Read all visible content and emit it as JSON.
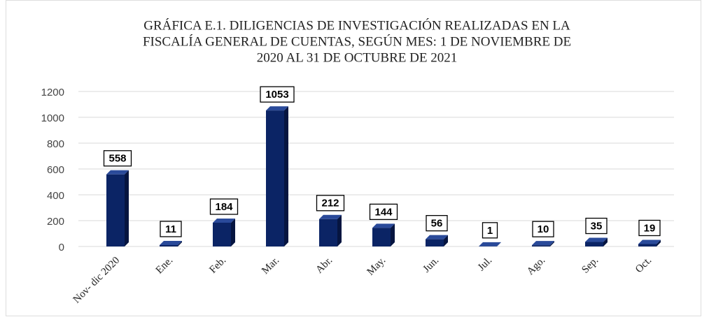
{
  "chart_data": {
    "type": "bar",
    "title": [
      "GRÁFICA E.1. DILIGENCIAS DE INVESTIGACIÓN REALIZADAS  EN LA",
      "FISCALÍA GENERAL  DE CUENTAS, SEGÚN MES: 1 DE NOVIEMBRE  DE",
      "2020 AL 31 DE OCTUBRE DE 2021"
    ],
    "categories": [
      "Nov- dic 2020",
      "Ene.",
      "Feb.",
      "Mar.",
      "Abr.",
      "May.",
      "Jun.",
      "Jul.",
      "Ago.",
      "Sep.",
      "Oct."
    ],
    "values": [
      558,
      11,
      184,
      1053,
      212,
      144,
      56,
      1,
      10,
      35,
      19
    ],
    "color": "#0b2465",
    "ylim": [
      0,
      1200
    ],
    "yticks": [
      0,
      200,
      400,
      600,
      800,
      1000,
      1200
    ],
    "grid": true
  }
}
